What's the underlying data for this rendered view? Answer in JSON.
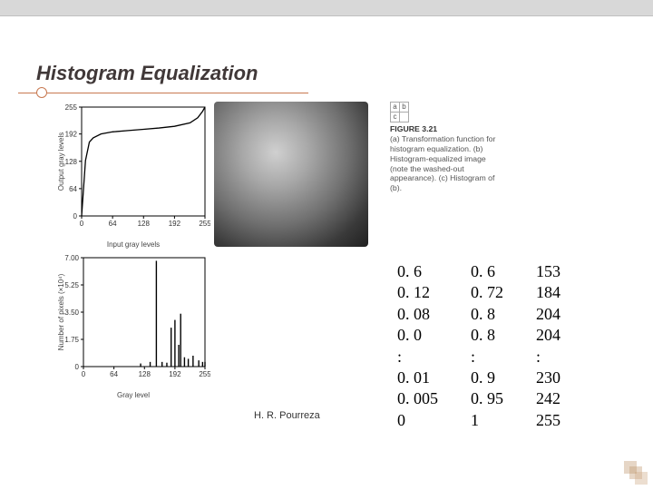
{
  "title": "Histogram Equalization",
  "author": "H. R. Pourreza",
  "caption": {
    "gridLabels": [
      "a",
      "b",
      "c"
    ],
    "figNum": "FIGURE 3.21",
    "text": "(a) Transformation function for histogram equalization. (b) Histogram-equalized image (note the washed-out appearance). (c) Histogram of (b)."
  },
  "chart_top": {
    "type": "line",
    "ylabel": "Output gray levels",
    "xlabel": "Input gray levels",
    "xlim": [
      0,
      255
    ],
    "ylim": [
      0,
      255
    ],
    "xticks": [
      0,
      64,
      128,
      192,
      255
    ],
    "yticks": [
      0,
      64,
      128,
      192,
      255
    ],
    "line_color": "#000000",
    "series": [
      {
        "x": 0,
        "y": 0
      },
      {
        "x": 8,
        "y": 130
      },
      {
        "x": 16,
        "y": 173
      },
      {
        "x": 24,
        "y": 183
      },
      {
        "x": 40,
        "y": 192
      },
      {
        "x": 64,
        "y": 197
      },
      {
        "x": 96,
        "y": 200
      },
      {
        "x": 128,
        "y": 203
      },
      {
        "x": 160,
        "y": 206
      },
      {
        "x": 192,
        "y": 210
      },
      {
        "x": 224,
        "y": 218
      },
      {
        "x": 240,
        "y": 230
      },
      {
        "x": 250,
        "y": 245
      },
      {
        "x": 255,
        "y": 255
      }
    ]
  },
  "chart_bottom": {
    "type": "histogram",
    "ylabel": "Number of pixels (×10⁴)",
    "xlabel": "Gray level",
    "xlim": [
      0,
      255
    ],
    "ylim": [
      0,
      7.0
    ],
    "xticks": [
      0,
      64,
      128,
      192,
      255
    ],
    "yticks": [
      0,
      1.75,
      3.5,
      5.25,
      7.0
    ],
    "ytick_labels": [
      "0",
      "1.75",
      "3.50",
      "5.25",
      "7.00"
    ],
    "bar_color": "#000000",
    "bars": [
      {
        "x": 120,
        "h": 0.2
      },
      {
        "x": 140,
        "h": 0.3
      },
      {
        "x": 153,
        "h": 6.8
      },
      {
        "x": 165,
        "h": 0.3
      },
      {
        "x": 175,
        "h": 0.25
      },
      {
        "x": 184,
        "h": 2.5
      },
      {
        "x": 192,
        "h": 3.0
      },
      {
        "x": 200,
        "h": 1.4
      },
      {
        "x": 204,
        "h": 3.4
      },
      {
        "x": 212,
        "h": 0.6
      },
      {
        "x": 220,
        "h": 0.5
      },
      {
        "x": 230,
        "h": 0.7
      },
      {
        "x": 242,
        "h": 0.4
      },
      {
        "x": 250,
        "h": 0.3
      },
      {
        "x": 255,
        "h": 0.3
      }
    ]
  },
  "table": {
    "col1": [
      "0. 6",
      "0. 12",
      "0. 08",
      "0. 0",
      ":",
      "0. 01",
      "0. 005",
      "0"
    ],
    "col2": [
      "0. 6",
      "0. 72",
      "0. 8",
      "0. 8",
      ":",
      "0. 9",
      "0. 95",
      "1"
    ],
    "col3": [
      "153",
      "184",
      "204",
      "204",
      ":",
      "230",
      "242",
      "255"
    ]
  },
  "colors": {
    "title_color": "#403838",
    "accent": "#c87850",
    "topbar": "#d8d8d8"
  }
}
